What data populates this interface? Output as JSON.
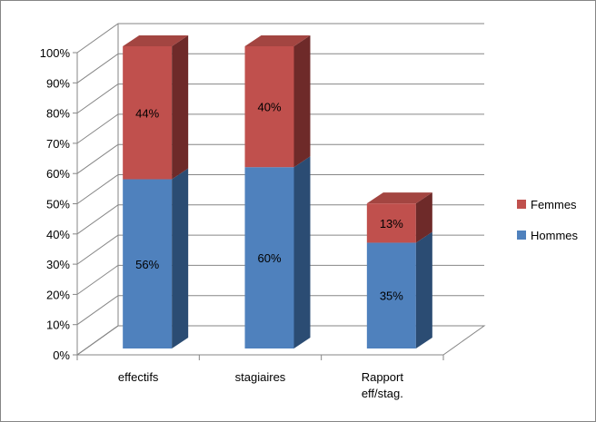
{
  "chart_data": {
    "type": "bar",
    "stacked": true,
    "percent": true,
    "three_d": true,
    "categories": [
      "effectifs",
      "stagiaires",
      "Rapport eff/stag."
    ],
    "category_lines": [
      [
        "effectifs"
      ],
      [
        "stagiaires"
      ],
      [
        "Rapport",
        "eff/stag."
      ]
    ],
    "series": [
      {
        "name": "Hommes",
        "values": [
          56,
          60,
          35
        ],
        "labels": [
          "56%",
          "60%",
          "35%"
        ],
        "color": "#4f81bd",
        "side_color": "#2b4c73",
        "top_color": "#4f81bd"
      },
      {
        "name": "Femmes",
        "values": [
          44,
          40,
          13
        ],
        "labels": [
          "44%",
          "40%",
          "13%"
        ],
        "color": "#c0504d",
        "side_color": "#6e2a29",
        "top_color": "#a34541"
      }
    ],
    "yticks": [
      "0%",
      "10%",
      "20%",
      "30%",
      "40%",
      "50%",
      "60%",
      "70%",
      "80%",
      "90%",
      "100%"
    ],
    "ylim": [
      0,
      100
    ],
    "grid": true,
    "legend_position": "right"
  }
}
